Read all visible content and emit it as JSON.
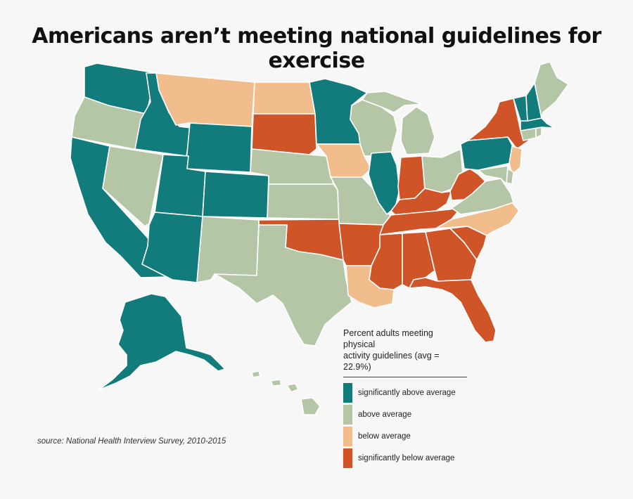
{
  "title": "Americans aren’t meeting national guidelines for exercise",
  "source": "source: National Health Interview Survey, 2010-2015",
  "legend": {
    "title_line1": "Percent adults meeting physical",
    "title_line2": "activity guidelines (avg = 22.9%)",
    "items": [
      {
        "label": "significantly above average",
        "color": "#127b7b"
      },
      {
        "label": "above average",
        "color": "#b4c6a6"
      },
      {
        "label": "below average",
        "color": "#f1bd8c"
      },
      {
        "label": "significantly below average",
        "color": "#cf5428"
      }
    ]
  },
  "categories": {
    "sig_above": "#127b7b",
    "above": "#b4c6a6",
    "below": "#f1bd8c",
    "sig_below": "#cf5428"
  },
  "states": {
    "WA": "sig_above",
    "OR": "above",
    "CA": "sig_above",
    "ID": "sig_above",
    "NV": "above",
    "MT": "below",
    "WY": "sig_above",
    "UT": "sig_above",
    "AZ": "sig_above",
    "CO": "sig_above",
    "NM": "above",
    "ND": "below",
    "SD": "sig_below",
    "NE": "above",
    "KS": "above",
    "OK": "sig_below",
    "TX": "above",
    "MN": "sig_above",
    "IA": "below",
    "MO": "above",
    "AR": "sig_below",
    "LA": "below",
    "WI": "above",
    "IL": "sig_above",
    "MI": "above",
    "IN": "sig_below",
    "OH": "above",
    "KY": "sig_below",
    "TN": "sig_below",
    "MS": "sig_below",
    "AL": "sig_below",
    "GA": "sig_below",
    "FL": "sig_below",
    "SC": "sig_below",
    "NC": "below",
    "VA": "above",
    "WV": "sig_below",
    "PA": "sig_above",
    "NY": "sig_below",
    "ME": "above",
    "VT": "sig_above",
    "NH": "sig_above",
    "MA": "sig_above",
    "CT": "above",
    "RI": "above",
    "NJ": "below",
    "DE": "above",
    "MD": "above",
    "AK": "sig_above",
    "HI": "above"
  }
}
